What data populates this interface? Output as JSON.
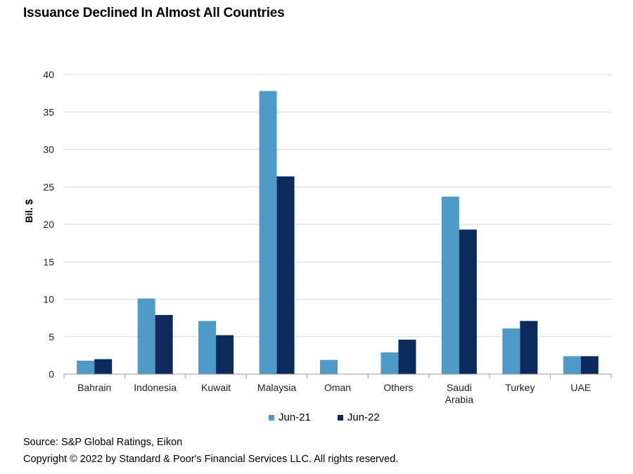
{
  "title": "Issuance Declined In Almost All Countries",
  "source": "Source: S&P Global Ratings, Eikon",
  "copyright": "Copyright © 2022 by Standard & Poor's Financial Services LLC. All rights reserved.",
  "colors": {
    "jun21": "#4f9ac6",
    "jun22": "#0c2a5b",
    "grid": "#d9d9d9",
    "axis": "#999999"
  },
  "chart_data": {
    "type": "bar",
    "title": "Issuance Declined In Almost All Countries",
    "ylabel": "Bil. $",
    "xlabel": "",
    "ylim": [
      0,
      40
    ],
    "yticks": [
      0,
      5,
      10,
      15,
      20,
      25,
      30,
      35,
      40
    ],
    "grid": true,
    "legend_position": "bottom",
    "categories": [
      [
        "Bahrain"
      ],
      [
        "Indonesia"
      ],
      [
        "Kuwait"
      ],
      [
        "Malaysia"
      ],
      [
        "Oman"
      ],
      [
        "Others"
      ],
      [
        "Saudi",
        "Arabia"
      ],
      [
        "Turkey"
      ],
      [
        "UAE"
      ]
    ],
    "series": [
      {
        "name": "Jun-21",
        "values": [
          1.8,
          10.1,
          7.1,
          37.8,
          1.9,
          2.9,
          23.7,
          6.1,
          2.4
        ]
      },
      {
        "name": "Jun-22",
        "values": [
          2.0,
          7.9,
          5.2,
          26.4,
          0,
          4.6,
          19.3,
          7.1,
          2.4
        ]
      }
    ]
  }
}
